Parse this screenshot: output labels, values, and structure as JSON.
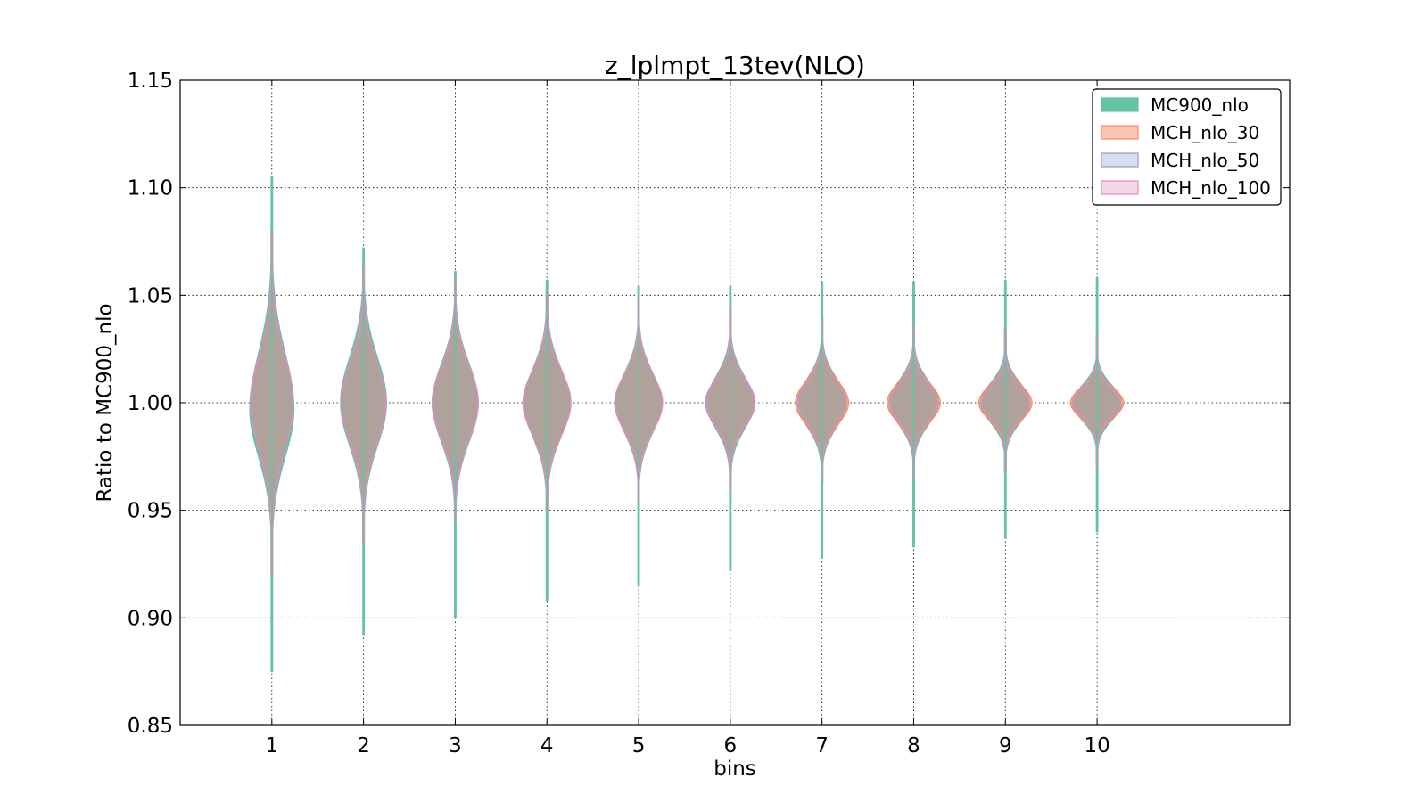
{
  "chart_data": {
    "type": "violin",
    "title": "z_lplmpt_13tev(NLO)",
    "xlabel": "bins",
    "ylabel": "Ratio to MC900_nlo",
    "xlim": [
      0,
      12.1
    ],
    "ylim": [
      0.85,
      1.15
    ],
    "xticks": [
      "1",
      "2",
      "3",
      "4",
      "5",
      "6",
      "7",
      "8",
      "9",
      "10"
    ],
    "yticks": [
      "0.85",
      "0.90",
      "0.95",
      "1.00",
      "1.05",
      "1.10",
      "1.15"
    ],
    "grid": true,
    "legend_position": "top-right",
    "categories": [
      "1",
      "2",
      "3",
      "4",
      "5",
      "6",
      "7",
      "8",
      "9",
      "10"
    ],
    "series": [
      {
        "name": "MC900_nlo",
        "color": "#66c2a5",
        "fill_opacity": 1.0,
        "violins": [
          {
            "min": 0.875,
            "max": 1.105,
            "halfwidth": 0.24,
            "center": 0.997,
            "sd_up": 0.026,
            "sd_down": 0.022
          },
          {
            "min": 0.892,
            "max": 1.072,
            "halfwidth": 0.25,
            "center": 1.0,
            "sd_up": 0.021,
            "sd_down": 0.02
          },
          {
            "min": 0.9,
            "max": 1.061,
            "halfwidth": 0.25,
            "center": 1.0,
            "sd_up": 0.018,
            "sd_down": 0.018
          },
          {
            "min": 0.908,
            "max": 1.057,
            "halfwidth": 0.25,
            "center": 1.0,
            "sd_up": 0.016,
            "sd_down": 0.016
          },
          {
            "min": 0.915,
            "max": 1.054,
            "halfwidth": 0.25,
            "center": 1.0,
            "sd_up": 0.014,
            "sd_down": 0.014
          },
          {
            "min": 0.922,
            "max": 1.054,
            "halfwidth": 0.26,
            "center": 1.0,
            "sd_up": 0.012,
            "sd_down": 0.012
          },
          {
            "min": 0.928,
            "max": 1.056,
            "halfwidth": 0.27,
            "center": 1.0,
            "sd_up": 0.011,
            "sd_down": 0.011
          },
          {
            "min": 0.933,
            "max": 1.056,
            "halfwidth": 0.27,
            "center": 1.0,
            "sd_up": 0.01,
            "sd_down": 0.01
          },
          {
            "min": 0.937,
            "max": 1.057,
            "halfwidth": 0.27,
            "center": 1.0,
            "sd_up": 0.009,
            "sd_down": 0.009
          },
          {
            "min": 0.94,
            "max": 1.058,
            "halfwidth": 0.27,
            "center": 1.0,
            "sd_up": 0.008,
            "sd_down": 0.008
          }
        ]
      },
      {
        "name": "MCH_nlo_30",
        "color": "#fc8d62",
        "fill_opacity": 0.5,
        "violins": [
          {
            "min": 0.92,
            "max": 1.08,
            "halfwidth": 0.23,
            "center": 1.0,
            "sd_up": 0.022,
            "sd_down": 0.022
          },
          {
            "min": 0.935,
            "max": 1.065,
            "halfwidth": 0.24,
            "center": 1.0,
            "sd_up": 0.019,
            "sd_down": 0.019
          },
          {
            "min": 0.945,
            "max": 1.058,
            "halfwidth": 0.25,
            "center": 1.0,
            "sd_up": 0.017,
            "sd_down": 0.017
          },
          {
            "min": 0.95,
            "max": 1.052,
            "halfwidth": 0.26,
            "center": 1.0,
            "sd_up": 0.015,
            "sd_down": 0.015
          },
          {
            "min": 0.955,
            "max": 1.048,
            "halfwidth": 0.26,
            "center": 1.0,
            "sd_up": 0.013,
            "sd_down": 0.013
          },
          {
            "min": 0.96,
            "max": 1.044,
            "halfwidth": 0.27,
            "center": 1.0,
            "sd_up": 0.011,
            "sd_down": 0.011
          },
          {
            "min": 0.963,
            "max": 1.04,
            "halfwidth": 0.29,
            "center": 1.0,
            "sd_up": 0.01,
            "sd_down": 0.01
          },
          {
            "min": 0.965,
            "max": 1.037,
            "halfwidth": 0.29,
            "center": 1.0,
            "sd_up": 0.009,
            "sd_down": 0.009
          },
          {
            "min": 0.968,
            "max": 1.034,
            "halfwidth": 0.29,
            "center": 1.0,
            "sd_up": 0.008,
            "sd_down": 0.008
          },
          {
            "min": 0.97,
            "max": 1.032,
            "halfwidth": 0.29,
            "center": 1.0,
            "sd_up": 0.007,
            "sd_down": 0.007
          }
        ]
      },
      {
        "name": "MCH_nlo_50",
        "color": "#8da0cb",
        "fill_opacity": 0.25,
        "violins": [
          {
            "min": 0.92,
            "max": 1.08,
            "halfwidth": 0.23,
            "center": 1.0,
            "sd_up": 0.022,
            "sd_down": 0.022
          },
          {
            "min": 0.935,
            "max": 1.065,
            "halfwidth": 0.24,
            "center": 1.0,
            "sd_up": 0.019,
            "sd_down": 0.019
          },
          {
            "min": 0.945,
            "max": 1.058,
            "halfwidth": 0.25,
            "center": 1.0,
            "sd_up": 0.017,
            "sd_down": 0.017
          },
          {
            "min": 0.95,
            "max": 1.052,
            "halfwidth": 0.26,
            "center": 1.0,
            "sd_up": 0.015,
            "sd_down": 0.015
          },
          {
            "min": 0.955,
            "max": 1.048,
            "halfwidth": 0.26,
            "center": 1.0,
            "sd_up": 0.013,
            "sd_down": 0.013
          },
          {
            "min": 0.96,
            "max": 1.044,
            "halfwidth": 0.27,
            "center": 1.0,
            "sd_up": 0.011,
            "sd_down": 0.011
          },
          {
            "min": 0.963,
            "max": 1.04,
            "halfwidth": 0.26,
            "center": 1.0,
            "sd_up": 0.01,
            "sd_down": 0.01
          },
          {
            "min": 0.965,
            "max": 1.037,
            "halfwidth": 0.26,
            "center": 1.0,
            "sd_up": 0.009,
            "sd_down": 0.009
          },
          {
            "min": 0.968,
            "max": 1.034,
            "halfwidth": 0.26,
            "center": 1.0,
            "sd_up": 0.008,
            "sd_down": 0.008
          },
          {
            "min": 0.97,
            "max": 1.032,
            "halfwidth": 0.26,
            "center": 1.0,
            "sd_up": 0.007,
            "sd_down": 0.007
          }
        ]
      },
      {
        "name": "MCH_nlo_100",
        "color": "#e78ac3",
        "fill_opacity": 0.12,
        "violins": [
          {
            "min": 0.92,
            "max": 1.08,
            "halfwidth": 0.23,
            "center": 1.0,
            "sd_up": 0.022,
            "sd_down": 0.022
          },
          {
            "min": 0.935,
            "max": 1.065,
            "halfwidth": 0.24,
            "center": 1.0,
            "sd_up": 0.019,
            "sd_down": 0.019
          },
          {
            "min": 0.945,
            "max": 1.058,
            "halfwidth": 0.25,
            "center": 1.0,
            "sd_up": 0.017,
            "sd_down": 0.017
          },
          {
            "min": 0.95,
            "max": 1.052,
            "halfwidth": 0.26,
            "center": 1.0,
            "sd_up": 0.015,
            "sd_down": 0.015
          },
          {
            "min": 0.955,
            "max": 1.048,
            "halfwidth": 0.26,
            "center": 1.0,
            "sd_up": 0.013,
            "sd_down": 0.013
          },
          {
            "min": 0.96,
            "max": 1.044,
            "halfwidth": 0.26,
            "center": 1.0,
            "sd_up": 0.011,
            "sd_down": 0.011
          },
          {
            "min": 0.963,
            "max": 1.04,
            "halfwidth": 0.26,
            "center": 1.0,
            "sd_up": 0.01,
            "sd_down": 0.01
          },
          {
            "min": 0.965,
            "max": 1.037,
            "halfwidth": 0.26,
            "center": 1.0,
            "sd_up": 0.009,
            "sd_down": 0.009
          },
          {
            "min": 0.968,
            "max": 1.034,
            "halfwidth": 0.26,
            "center": 1.0,
            "sd_up": 0.008,
            "sd_down": 0.008
          },
          {
            "min": 0.97,
            "max": 1.032,
            "halfwidth": 0.26,
            "center": 1.0,
            "sd_up": 0.007,
            "sd_down": 0.007
          }
        ]
      }
    ]
  }
}
